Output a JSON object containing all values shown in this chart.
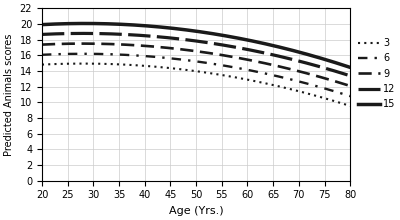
{
  "xlabel": "Age (Yrs.)",
  "ylabel": "Predicted Animals scores",
  "xlim": [
    20,
    80
  ],
  "ylim": [
    0,
    22
  ],
  "xticks": [
    20,
    25,
    30,
    35,
    40,
    45,
    50,
    55,
    60,
    65,
    70,
    75,
    80
  ],
  "yticks": [
    0,
    2,
    4,
    6,
    8,
    10,
    12,
    14,
    16,
    18,
    20,
    22
  ],
  "series": [
    {
      "label": "3",
      "linestyle": "dotted",
      "lw": 1.5,
      "color": "#1a1a1a",
      "base": 14.8,
      "rise": 0.032,
      "decay": 0.002
    },
    {
      "label": "6",
      "linestyle": "loosedash",
      "lw": 1.7,
      "color": "#1a1a1a",
      "base": 16.05,
      "rise": 0.032,
      "decay": 0.002
    },
    {
      "label": "9",
      "linestyle": "dash",
      "lw": 1.9,
      "color": "#1a1a1a",
      "base": 17.35,
      "rise": 0.032,
      "decay": 0.002
    },
    {
      "label": "12",
      "linestyle": "longdash",
      "lw": 2.3,
      "color": "#1a1a1a",
      "base": 18.65,
      "rise": 0.032,
      "decay": 0.002
    },
    {
      "label": "15",
      "linestyle": "solid",
      "lw": 2.5,
      "color": "#1a1a1a",
      "base": 19.9,
      "rise": 0.035,
      "decay": 0.0021
    }
  ],
  "background_color": "#ffffff",
  "grid_color": "#cccccc",
  "legend_fontsize": 7,
  "tick_fontsize": 7,
  "label_fontsize": 8,
  "ylabel_fontsize": 7
}
